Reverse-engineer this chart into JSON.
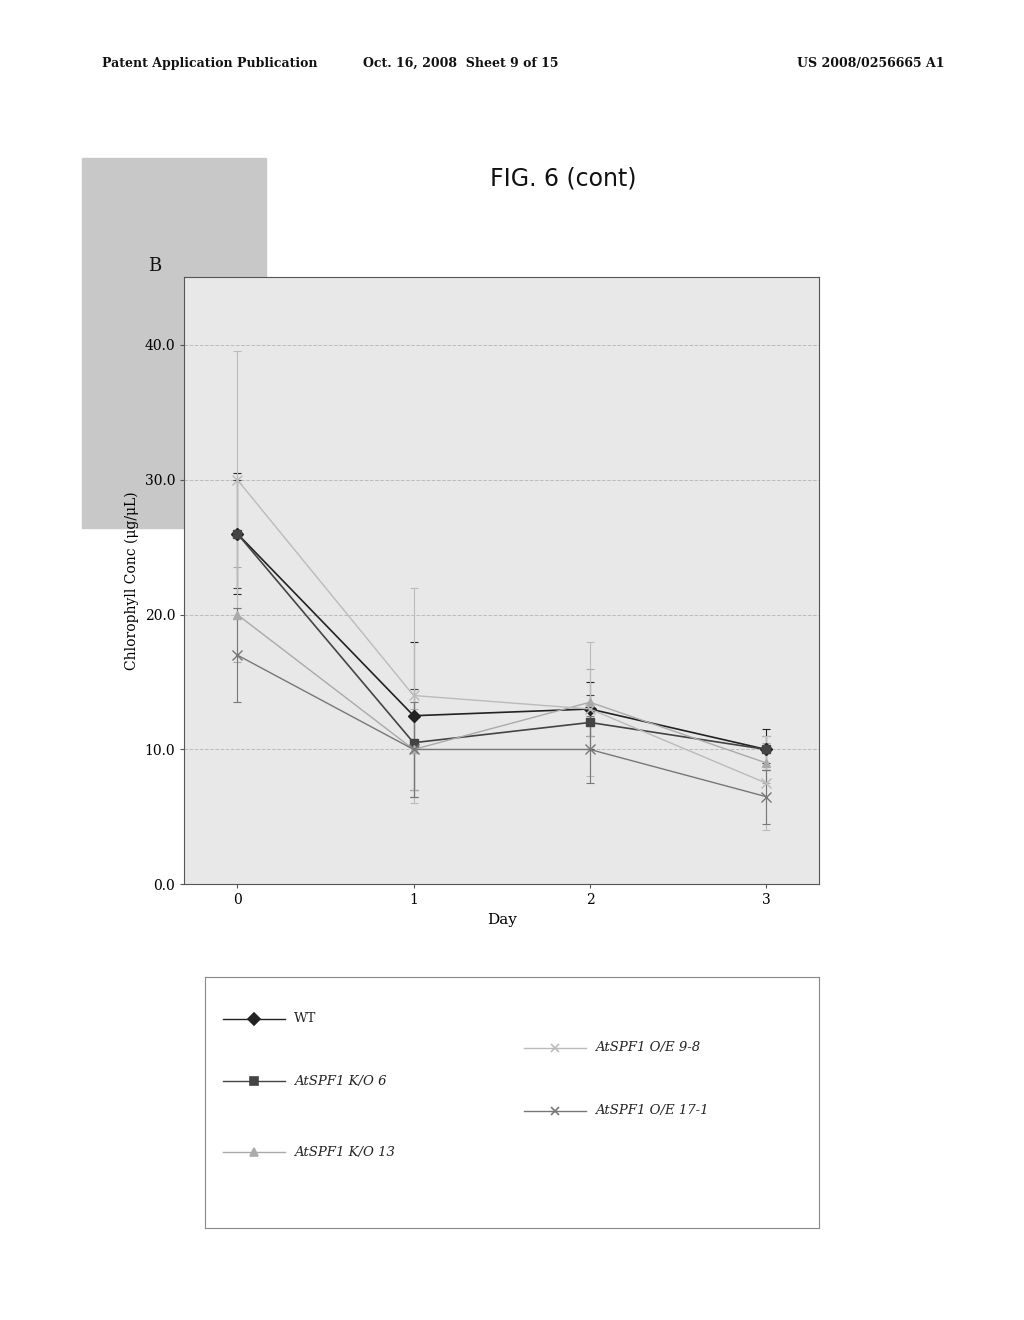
{
  "title": "FIG. 6 (cont)",
  "panel_label": "B",
  "xlabel": "Day",
  "ylabel": "Chlorophyll Conc (μg/μL)",
  "xlim": [
    -0.3,
    3.3
  ],
  "ylim": [
    0.0,
    45.0
  ],
  "yticks": [
    0.0,
    10.0,
    20.0,
    30.0,
    40.0
  ],
  "xticks": [
    0,
    1,
    2,
    3
  ],
  "plot_bg_color": "#e8e8e8",
  "page_color": "#ffffff",
  "series": [
    {
      "label": "WT",
      "x": [
        0,
        1,
        2,
        3
      ],
      "y": [
        26.0,
        12.5,
        13.0,
        10.0
      ],
      "yerr": [
        4.5,
        5.5,
        2.0,
        1.5
      ],
      "color": "#222222",
      "marker": "D",
      "markersize": 6,
      "linewidth": 1.2,
      "linestyle": "-"
    },
    {
      "label": "AtSPF1 K/O 6",
      "x": [
        0,
        1,
        2,
        3
      ],
      "y": [
        26.0,
        10.5,
        12.0,
        10.0
      ],
      "yerr": [
        4.0,
        4.0,
        2.0,
        1.0
      ],
      "color": "#444444",
      "marker": "s",
      "markersize": 6,
      "linewidth": 1.2,
      "linestyle": "-"
    },
    {
      "label": "AtSPF1 K/O 13",
      "x": [
        0,
        1,
        2,
        3
      ],
      "y": [
        20.0,
        10.0,
        13.5,
        9.0
      ],
      "yerr": [
        3.5,
        3.0,
        2.5,
        1.5
      ],
      "color": "#aaaaaa",
      "marker": "^",
      "markersize": 6,
      "linewidth": 1.0,
      "linestyle": "-"
    },
    {
      "label": "AtSPF1 O/E 9-8",
      "x": [
        0,
        1,
        2,
        3
      ],
      "y": [
        30.0,
        14.0,
        13.0,
        7.5
      ],
      "yerr": [
        9.5,
        8.0,
        5.0,
        3.5
      ],
      "color": "#bbbbbb",
      "marker": "x",
      "markersize": 7,
      "linewidth": 1.0,
      "linestyle": "-"
    },
    {
      "label": "AtSPF1 O/E 17-1",
      "x": [
        0,
        1,
        2,
        3
      ],
      "y": [
        17.0,
        10.0,
        10.0,
        6.5
      ],
      "yerr": [
        3.5,
        3.5,
        2.5,
        2.0
      ],
      "color": "#777777",
      "marker": "x",
      "markersize": 7,
      "linewidth": 1.0,
      "linestyle": "-"
    }
  ],
  "header_left": "Patent Application Publication",
  "header_mid": "Oct. 16, 2008  Sheet 9 of 15",
  "header_right": "US 2008/0256665 A1"
}
